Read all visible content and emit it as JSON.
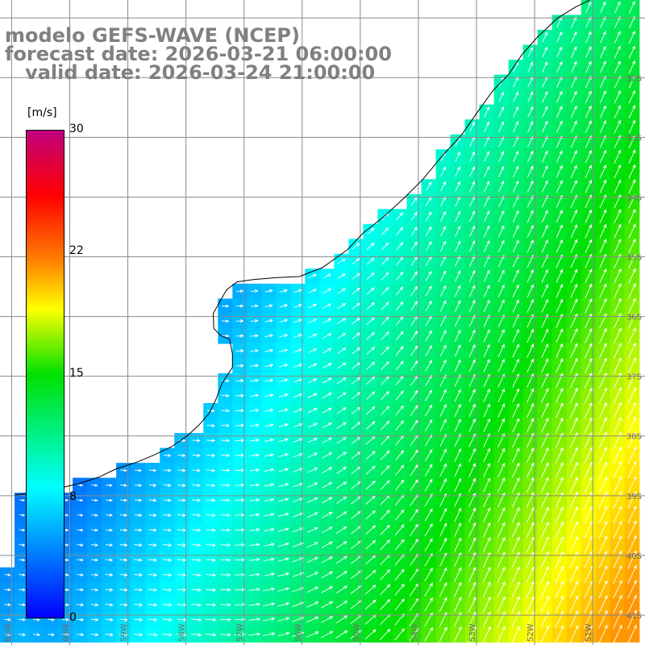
{
  "header": {
    "line1": "modelo GEFS-WAVE (NCEP)",
    "line2": "forecast date: 2026-03-21 06:00:00",
    "line3": "   valid date: 2026-03-24 21:00:00"
  },
  "colorbar": {
    "unit": "[m/s]",
    "min": 0,
    "max": 30,
    "ticks": [
      "30",
      "22",
      "15",
      "8",
      "0"
    ],
    "tick_values": [
      30,
      22,
      15,
      8,
      0
    ],
    "color_stops": [
      {
        "value": 0,
        "color": "#0000ff"
      },
      {
        "value": 8,
        "color": "#00ffff"
      },
      {
        "value": 15,
        "color": "#00e000"
      },
      {
        "value": 19,
        "color": "#ffff00"
      },
      {
        "value": 22,
        "color": "#ff8000"
      },
      {
        "value": 26,
        "color": "#ff0000"
      },
      {
        "value": 30,
        "color": "#c0007e"
      }
    ]
  },
  "map": {
    "field": "wind speed",
    "lon_range": [
      -61.2,
      -50.1
    ],
    "lat_range": [
      -41.5,
      -30.7
    ],
    "grid_step_deg": 0.25,
    "graticule_step_deg": 1,
    "lat_labels": [
      "32S",
      "33S",
      "34S",
      "35S",
      "36S",
      "37S",
      "38S",
      "39S",
      "40S",
      "41S"
    ],
    "lon_labels": [
      "61W",
      "60W",
      "59W",
      "58W",
      "57W",
      "56W",
      "55W",
      "54W",
      "53W",
      "52W",
      "51W"
    ],
    "land_color": "#ffffff",
    "coast_color": "#000000",
    "graticule_color": "#8a8a8a",
    "arrow_color": "#ffffff"
  }
}
